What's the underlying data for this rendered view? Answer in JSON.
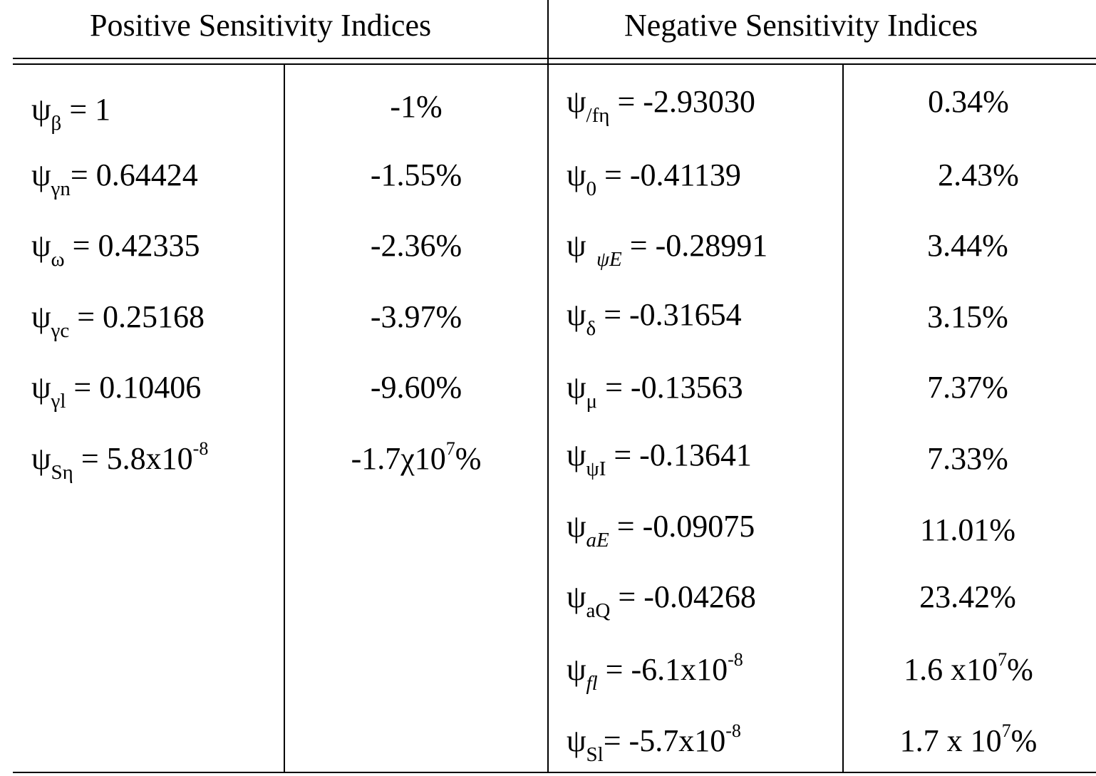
{
  "table": {
    "header_positive": "Positive Sensitivity Indices",
    "header_negative": "Negative Sensitivity Indices",
    "positive_rows": [
      {
        "psi": "ψ",
        "sub": "β",
        "eq": " = 1",
        "sup": "",
        "pct": "-1%"
      },
      {
        "psi": "ψ",
        "sub": "γn",
        "eq": "= 0.64424",
        "sup": "",
        "pct": "-1.55%"
      },
      {
        "psi": "ψ",
        "sub": "ω",
        "eq": " = 0.42335",
        "sup": "",
        "pct": "-2.36%"
      },
      {
        "psi": "ψ",
        "sub": "γc",
        "eq": " = 0.25168",
        "sup": "",
        "pct": "-3.97%"
      },
      {
        "psi": "ψ",
        "sub": "γl",
        "eq": " = 0.10406",
        "sup": "",
        "pct": "-9.60%"
      },
      {
        "psi": "ψ",
        "sub": "Sη",
        "eq": " = 5.8x10",
        "sup": "-8",
        "pct_pre": "-1.7χ10",
        "pct_sup": "7",
        "pct_post": "%"
      }
    ],
    "negative_rows": [
      {
        "psi": "ψ",
        "sub": "/fη",
        "eq": " = -2.93030",
        "sup": "",
        "pct": "0.34%"
      },
      {
        "psi": "ψ",
        "sub": "0",
        "eq": " = -0.41139",
        "sup": "",
        "pct": "2.43%"
      },
      {
        "psi": "ψ",
        "sub": "  ψE",
        "eq": " = -0.28991",
        "sup": "",
        "pct": "3.44%"
      },
      {
        "psi": "ψ",
        "sub": "δ",
        "eq": " = -0.31654",
        "sup": "",
        "pct": "3.15%"
      },
      {
        "psi": "ψ",
        "sub": "μ",
        "eq": " = -0.13563",
        "sup": "",
        "pct": "7.37%"
      },
      {
        "psi": "ψ",
        "sub": "ψI",
        "eq": " = -0.13641",
        "sup": "",
        "pct": "7.33%"
      },
      {
        "psi": "ψ",
        "sub": "aE",
        "eq": " = -0.09075",
        "sup": "",
        "pct": "11.01%"
      },
      {
        "psi": "ψ",
        "sub": "aQ",
        "eq": " = -0.04268",
        "sup": "",
        "pct": "23.42%"
      },
      {
        "psi": "ψ",
        "sub": "fl",
        "eq": " = -6.1x10",
        "sup": "-8",
        "pct_pre": "1.6 x10",
        "pct_sup": "7",
        "pct_post": "%"
      },
      {
        "psi": "ψ",
        "sub": "Sl",
        "eq": "= -5.7x10",
        "sup": "-8",
        "pct_pre": "1.7 x 10",
        "pct_sup": "7",
        "pct_post": "%"
      }
    ]
  }
}
